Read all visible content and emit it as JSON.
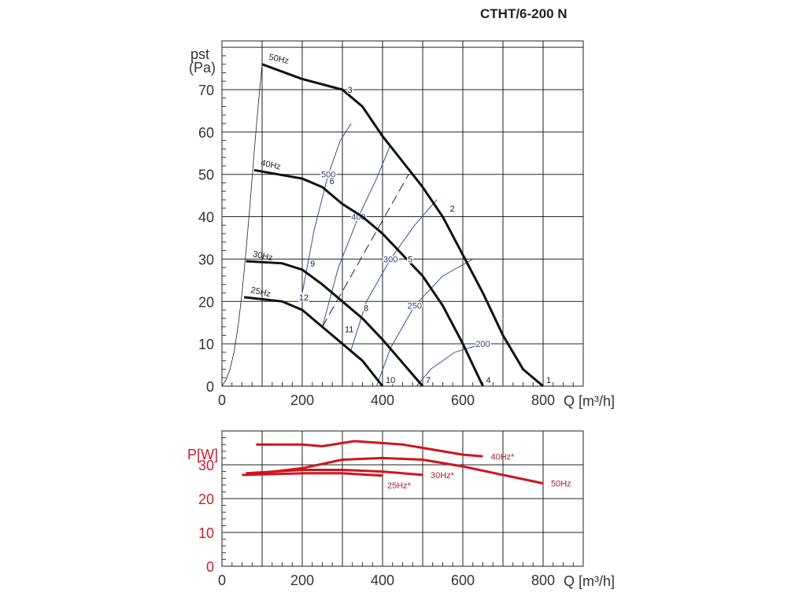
{
  "chart_data": [
    {
      "type": "line",
      "title": "CTHT/6-200 N",
      "xlabel": "Q [m³/h]",
      "ylabel_top": "pst",
      "ylabel_unit": "(Pa)",
      "xlim": [
        0,
        900
      ],
      "ylim": [
        0,
        81
      ],
      "xticks": [
        0,
        200,
        400,
        600,
        800
      ],
      "yticks": [
        0,
        10,
        20,
        30,
        40,
        50,
        60,
        70
      ],
      "grid": true,
      "series": [
        {
          "name": "50Hz",
          "points": [
            [
              100,
              76
            ],
            [
              200,
              72.5
            ],
            [
              300,
              70
            ],
            [
              350,
              66
            ],
            [
              400,
              59
            ],
            [
              450,
              53
            ],
            [
              500,
              47
            ],
            [
              550,
              40
            ],
            [
              600,
              31
            ],
            [
              650,
              22
            ],
            [
              700,
              12
            ],
            [
              750,
              4
            ],
            [
              800,
              0
            ]
          ]
        },
        {
          "name": "40Hz",
          "points": [
            [
              80,
              51
            ],
            [
              200,
              49
            ],
            [
              250,
              47
            ],
            [
              300,
              43
            ],
            [
              350,
              40
            ],
            [
              400,
              36
            ],
            [
              450,
              31
            ],
            [
              500,
              26
            ],
            [
              550,
              19
            ],
            [
              600,
              10
            ],
            [
              650,
              0
            ]
          ]
        },
        {
          "name": "30Hz",
          "points": [
            [
              60,
              29.5
            ],
            [
              150,
              29
            ],
            [
              200,
              27.5
            ],
            [
              250,
              24
            ],
            [
              300,
              20
            ],
            [
              350,
              16
            ],
            [
              400,
              11
            ],
            [
              450,
              5.5
            ],
            [
              500,
              0
            ]
          ]
        },
        {
          "name": "25Hz",
          "points": [
            [
              55,
              21
            ],
            [
              150,
              20
            ],
            [
              200,
              18
            ],
            [
              250,
              14
            ],
            [
              300,
              10
            ],
            [
              350,
              6
            ],
            [
              400,
              0
            ]
          ]
        }
      ],
      "system_curve": [
        [
          0,
          0
        ],
        [
          10,
          1.5
        ],
        [
          20,
          4
        ],
        [
          30,
          8
        ],
        [
          40,
          14
        ],
        [
          50,
          22
        ],
        [
          60,
          32
        ],
        [
          70,
          43
        ],
        [
          80,
          55
        ],
        [
          90,
          66
        ],
        [
          100,
          76
        ]
      ],
      "iso_curves": [
        {
          "name": "500",
          "points": [
            [
              200,
              22
            ],
            [
              230,
              37
            ],
            [
              265,
              50
            ],
            [
              295,
              58
            ],
            [
              322,
              62
            ]
          ]
        },
        {
          "name": "400",
          "points": [
            [
              250,
              14
            ],
            [
              290,
              28
            ],
            [
              340,
              40
            ],
            [
              385,
              49
            ],
            [
              420,
              57
            ]
          ]
        },
        {
          "name": "300",
          "points": [
            [
              320,
              8
            ],
            [
              360,
              20
            ],
            [
              420,
              30
            ],
            [
              480,
              38
            ],
            [
              535,
              44
            ]
          ]
        },
        {
          "name": "250",
          "points": [
            [
              385,
              0
            ],
            [
              420,
              9
            ],
            [
              480,
              19
            ],
            [
              550,
              26
            ],
            [
              625,
              30
            ]
          ]
        },
        {
          "name": "200",
          "points": [
            [
              485,
              0
            ],
            [
              520,
              4
            ],
            [
              580,
              8
            ],
            [
              650,
              10
            ],
            [
              745,
              10
            ]
          ]
        }
      ],
      "dashed_line": [
        [
          250,
          14
        ],
        [
          465,
          50
        ]
      ],
      "point_labels": [
        {
          "text": "1",
          "q": 800,
          "p": 0
        },
        {
          "text": "2",
          "q": 560,
          "p": 42
        },
        {
          "text": "3",
          "q": 305,
          "p": 70
        },
        {
          "text": "4",
          "q": 650,
          "p": 0
        },
        {
          "text": "5",
          "q": 455,
          "p": 30
        },
        {
          "text": "6",
          "q": 260,
          "p": 48.5
        },
        {
          "text": "7",
          "q": 500,
          "p": 0
        },
        {
          "text": "8",
          "q": 345,
          "p": 18.5
        },
        {
          "text": "9",
          "q": 212,
          "p": 29
        },
        {
          "text": "10",
          "q": 400,
          "p": 0
        },
        {
          "text": "11",
          "q": 298,
          "p": 13.5
        },
        {
          "text": "12",
          "q": 184,
          "p": 21
        }
      ]
    },
    {
      "type": "line",
      "xlabel": "Q [m³/h]",
      "ylabel": "P[W]",
      "xlim": [
        0,
        900
      ],
      "ylim": [
        0,
        40
      ],
      "xticks": [
        0,
        200,
        400,
        600,
        800
      ],
      "yticks": [
        0,
        10,
        20,
        30
      ],
      "grid": true,
      "series": [
        {
          "name": "50Hz",
          "points": [
            [
              60,
              27
            ],
            [
              200,
              29
            ],
            [
              300,
              31.5
            ],
            [
              400,
              32
            ],
            [
              500,
              31.5
            ],
            [
              600,
              29.5
            ],
            [
              700,
              27
            ],
            [
              800,
              24.5
            ]
          ]
        },
        {
          "name": "40Hz*",
          "points": [
            [
              85,
              36
            ],
            [
              200,
              36
            ],
            [
              250,
              35.5
            ],
            [
              330,
              37
            ],
            [
              450,
              36
            ],
            [
              500,
              35
            ],
            [
              600,
              33
            ],
            [
              650,
              32.5
            ]
          ]
        },
        {
          "name": "30Hz*",
          "points": [
            [
              60,
              27.5
            ],
            [
              200,
              28.5
            ],
            [
              300,
              28.5
            ],
            [
              400,
              28
            ],
            [
              500,
              27
            ]
          ]
        },
        {
          "name": "25Hz*",
          "points": [
            [
              50,
              27
            ],
            [
              200,
              27.5
            ],
            [
              300,
              27.5
            ],
            [
              400,
              26.8
            ]
          ]
        }
      ]
    }
  ],
  "colors": {
    "curve": "#111111",
    "iso": "#3a4f90",
    "power": "#d0141e",
    "grid": "#222222"
  }
}
